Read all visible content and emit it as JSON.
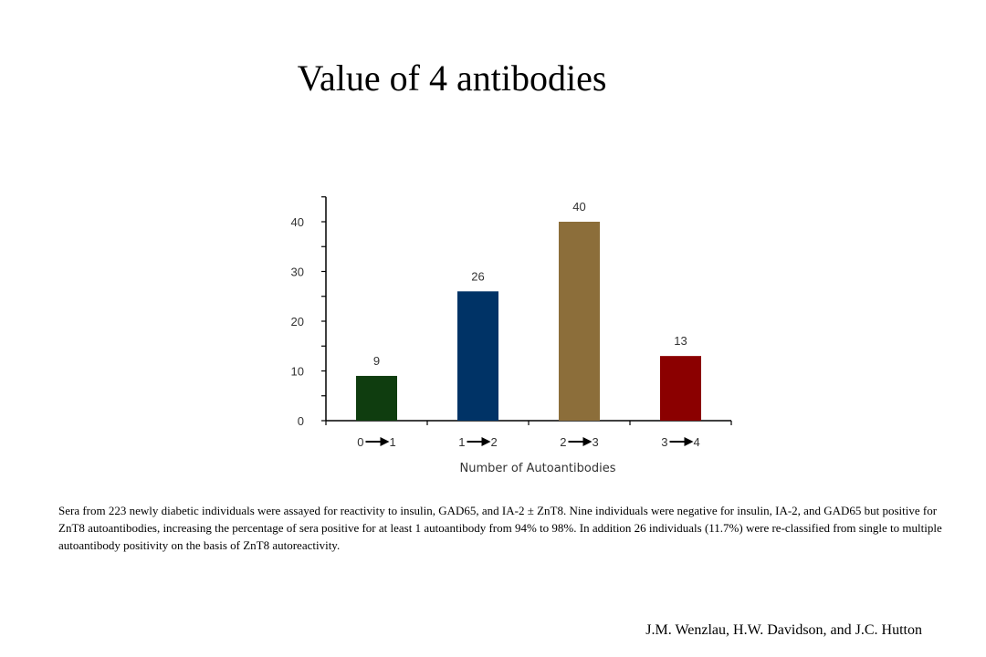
{
  "slide": {
    "title": "Value of 4 antibodies",
    "caption": "Sera from 223 newly diabetic individuals were assayed for reactivity to insulin, GAD65, and IA-2 ± ZnT8. Nine individuals were negative for insulin, IA-2, and GAD65 but positive for ZnT8 autoantibodies, increasing the percentage of sera positive for at least 1 autoantibody from 94% to 98%. In addition 26 individuals (11.7%) were re-classified from single to multiple autoantibody positivity on the basis of ZnT8 autoreactivity.",
    "credit": "J.M. Wenzlau, H.W. Davidson, and J.C. Hutton"
  },
  "chart_data": {
    "type": "bar",
    "categories": [
      {
        "from": "0",
        "to": "1"
      },
      {
        "from": "1",
        "to": "2"
      },
      {
        "from": "2",
        "to": "3"
      },
      {
        "from": "3",
        "to": "4"
      }
    ],
    "values": [
      9,
      26,
      40,
      13
    ],
    "colors": [
      "#0f3d0f",
      "#003366",
      "#8c6e3a",
      "#8b0000"
    ],
    "data_labels": [
      "9",
      "26",
      "40",
      "13"
    ],
    "yticks": [
      0,
      10,
      20,
      30,
      40
    ],
    "ylim": [
      0,
      45
    ],
    "xlabel": "Number of Autoantibodies",
    "ylabel": "",
    "grid": false,
    "legend": false
  }
}
